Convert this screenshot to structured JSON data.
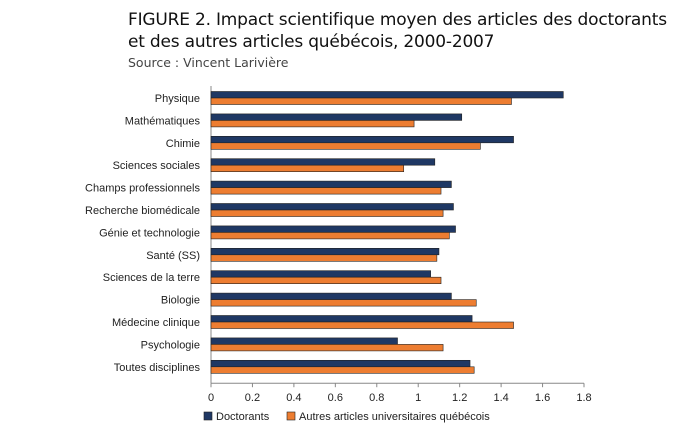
{
  "title": {
    "line1": "FIGURE 2. Impact scientifique moyen des articles des doctorants",
    "line2": "et des autres articles québécois, 2000-2007",
    "source": "Source : Vincent Larivière"
  },
  "colors": {
    "doctorants": "#1f3864",
    "autres": "#ed7d31",
    "bar_stroke": "#222222"
  },
  "chart_data": {
    "type": "bar",
    "orientation": "horizontal",
    "categories": [
      "Physique",
      "Mathématiques",
      "Chimie",
      "Sciences sociales",
      "Champs professionnels",
      "Recherche biomédicale",
      "Génie et technologie",
      "Santé (SS)",
      "Sciences de la terre",
      "Biologie",
      "Médecine clinique",
      "Psychologie",
      "Toutes disciplines"
    ],
    "series": [
      {
        "name": "Doctorants",
        "values": [
          1.7,
          1.21,
          1.46,
          1.08,
          1.16,
          1.17,
          1.18,
          1.1,
          1.06,
          1.16,
          1.26,
          0.9,
          1.25
        ]
      },
      {
        "name": "Autres articles universitaires québécois",
        "values": [
          1.45,
          0.98,
          1.3,
          0.93,
          1.11,
          1.12,
          1.15,
          1.09,
          1.11,
          1.28,
          1.46,
          1.12,
          1.27
        ]
      }
    ],
    "xlim": [
      0,
      1.8
    ],
    "xticks": [
      "0",
      "0.2",
      "0.4",
      "0.6",
      "0.8",
      "1",
      "1.2",
      "1.4",
      "1.6",
      "1.8"
    ],
    "xtick_values": [
      0,
      0.2,
      0.4,
      0.6,
      0.8,
      1,
      1.2,
      1.4,
      1.6,
      1.8
    ],
    "xlabel": "",
    "ylabel": "",
    "grid": false,
    "legend": "bottom"
  }
}
